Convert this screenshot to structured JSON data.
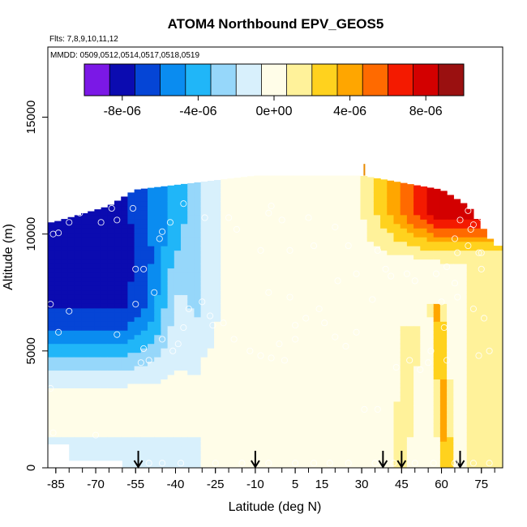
{
  "chart_data": {
    "type": "heatmap",
    "title": "ATOM4 Northbound EPV_GEOS5",
    "subtitle_flights": "Flts: 7,8,9,10,11,12",
    "subtitle_dates": "MMDD: 0509,0512,0514,0517,0518,0519",
    "xlabel": "Latitude (deg N)",
    "ylabel": "Altitude (m)",
    "xlim": [
      -88,
      83
    ],
    "ylim": [
      0,
      18000
    ],
    "x_ticks": [
      -85,
      -70,
      -55,
      -40,
      -25,
      -10,
      5,
      15,
      30,
      45,
      60,
      75
    ],
    "x_tick_labels": [
      "-85",
      "-70",
      "-55",
      "-40",
      "-25",
      "-10",
      "5",
      "15",
      "30",
      "45",
      "60",
      "75"
    ],
    "y_ticks": [
      0,
      5000,
      10000,
      15000
    ],
    "y_tick_labels": [
      "0",
      "5000",
      "10000",
      "15000"
    ],
    "colorbar": {
      "range": [
        -1e-05,
        1e-05
      ],
      "ticks": [
        -8e-06,
        -4e-06,
        0,
        4e-06,
        8e-06
      ],
      "tick_labels": [
        "-8e-06",
        "-4e-06",
        "0e+00",
        "4e-06",
        "8e-06"
      ],
      "colors": [
        "#7b18e6",
        "#0b0bb0",
        "#0545d6",
        "#0a8cf0",
        "#20b6f8",
        "#96d7fa",
        "#d8f0fc",
        "#fffde8",
        "#fff29a",
        "#ffd21e",
        "#ffa600",
        "#ff6a00",
        "#f41a00",
        "#d30000",
        "#9a1010"
      ]
    },
    "grid": false,
    "legend": "colorbar at top inside plot",
    "field_summary": {
      "altitude_top_by_latitude": [
        [
          -86,
          10500
        ],
        [
          -65,
          11200
        ],
        [
          -55,
          11900
        ],
        [
          -10,
          12500
        ],
        [
          30,
          12500
        ],
        [
          60,
          11900
        ],
        [
          70,
          11200
        ],
        [
          80,
          9500
        ]
      ],
      "min_value": -1e-05,
      "max_value": 1e-05
    },
    "arrows_latitude": [
      -54,
      -10,
      38,
      45,
      67
    ],
    "sample_points": [
      [
        -86,
        10000
      ],
      [
        -84,
        10050
      ],
      [
        -80,
        10500
      ],
      [
        -76,
        10900
      ],
      [
        -72,
        11300
      ],
      [
        -68,
        11400
      ],
      [
        -46,
        9800
      ],
      [
        -45,
        10100
      ],
      [
        -55,
        8500
      ],
      [
        -52,
        8500
      ],
      [
        -55,
        7000
      ],
      [
        -48,
        7500
      ],
      [
        -80,
        6700
      ],
      [
        -87,
        7000
      ],
      [
        -84,
        5800
      ],
      [
        -62,
        5700
      ],
      [
        -52,
        5100
      ],
      [
        -50,
        4600
      ],
      [
        -53,
        4500
      ],
      [
        -45,
        5500
      ],
      [
        -41,
        5000
      ],
      [
        -39,
        5300
      ],
      [
        -37,
        6000
      ],
      [
        -35,
        6800
      ],
      [
        -30,
        7100
      ],
      [
        -27,
        6500
      ],
      [
        -22,
        6200
      ],
      [
        -26,
        6100
      ],
      [
        -18,
        5500
      ],
      [
        -12,
        5000
      ],
      [
        -8,
        4800
      ],
      [
        -4,
        4700
      ],
      [
        -1,
        5300
      ],
      [
        1,
        4600
      ],
      [
        5,
        5500
      ],
      [
        5,
        6100
      ],
      [
        9,
        6400
      ],
      [
        14,
        6800
      ],
      [
        16,
        6200
      ],
      [
        20,
        5600
      ],
      [
        24,
        5200
      ],
      [
        -5,
        7500
      ],
      [
        3,
        7300
      ],
      [
        -8,
        9300
      ],
      [
        3,
        9300
      ],
      [
        12,
        9500
      ],
      [
        25,
        9500
      ],
      [
        36,
        9300
      ],
      [
        39,
        8500
      ],
      [
        41,
        8200
      ],
      [
        47,
        8300
      ],
      [
        50,
        8000
      ],
      [
        58,
        8300
      ],
      [
        62,
        8600
      ],
      [
        66,
        9200
      ],
      [
        70,
        9500
      ],
      [
        74,
        9200
      ],
      [
        75,
        8500
      ],
      [
        65,
        7900
      ],
      [
        66,
        7300
      ],
      [
        72,
        6800
      ],
      [
        76,
        6400
      ],
      [
        78,
        5000
      ],
      [
        74,
        4800
      ],
      [
        62,
        4600
      ],
      [
        55,
        4500
      ],
      [
        48,
        4600
      ],
      [
        43,
        4300
      ],
      [
        61,
        6000
      ],
      [
        56,
        5000
      ],
      [
        52,
        4200
      ],
      [
        36,
        2500
      ],
      [
        31,
        2500
      ],
      [
        34,
        7200
      ],
      [
        28,
        8300
      ],
      [
        21,
        8000
      ],
      [
        28,
        5800
      ],
      [
        -17,
        10200
      ],
      [
        -20,
        10700
      ],
      [
        0,
        10600
      ],
      [
        10,
        10700
      ],
      [
        20,
        10300
      ],
      [
        -4,
        11200
      ],
      [
        -37,
        11300
      ],
      [
        -29,
        10700
      ],
      [
        -42,
        10500
      ],
      [
        -56,
        11100
      ],
      [
        -62,
        10600
      ],
      [
        -64,
        11100
      ],
      [
        -68,
        10500
      ],
      [
        -5,
        10900
      ],
      [
        70,
        11000
      ],
      [
        72,
        10400
      ],
      [
        75,
        10700
      ],
      [
        71,
        10200
      ],
      [
        67,
        10600
      ],
      [
        65,
        9800
      ],
      [
        79,
        10000
      ],
      [
        75,
        9200
      ],
      [
        -70,
        1400
      ],
      [
        -86,
        1500
      ],
      [
        -87,
        3400
      ],
      [
        -50,
        200
      ],
      [
        -45,
        200
      ],
      [
        -38,
        200
      ],
      [
        -25,
        200
      ],
      [
        -15,
        200
      ],
      [
        -5,
        200
      ],
      [
        5,
        200
      ],
      [
        12,
        200
      ],
      [
        18,
        200
      ],
      [
        25,
        200
      ],
      [
        35,
        200
      ],
      [
        42,
        200
      ],
      [
        50,
        200
      ],
      [
        57,
        200
      ],
      [
        65,
        200
      ],
      [
        72,
        200
      ],
      [
        78,
        200
      ],
      [
        60,
        7100
      ]
    ]
  }
}
